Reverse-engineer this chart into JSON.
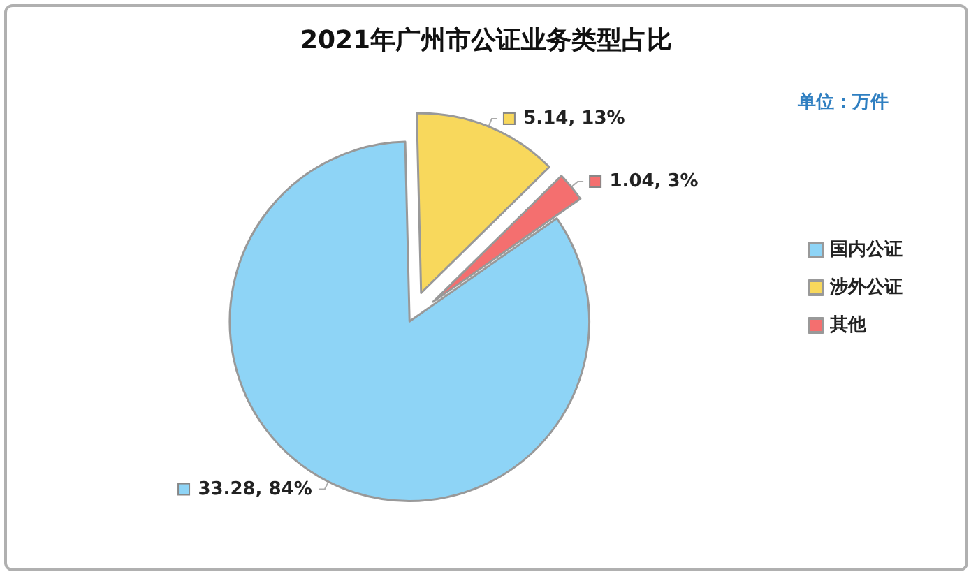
{
  "chart_data": {
    "type": "pie",
    "title": "2021年广州市公证业务类型占比",
    "categories": [
      "国内公证",
      "涉外公证",
      "其他"
    ],
    "values": [
      33.28,
      5.14,
      1.04
    ],
    "colors": [
      "#8ed4f6",
      "#f8d85c",
      "#f46f6f"
    ],
    "value_labels": [
      "33.28, 84%",
      "5.14, 13%",
      "1.04, 3%"
    ],
    "annotations": [
      "单位：万件"
    ],
    "legend": "right"
  }
}
